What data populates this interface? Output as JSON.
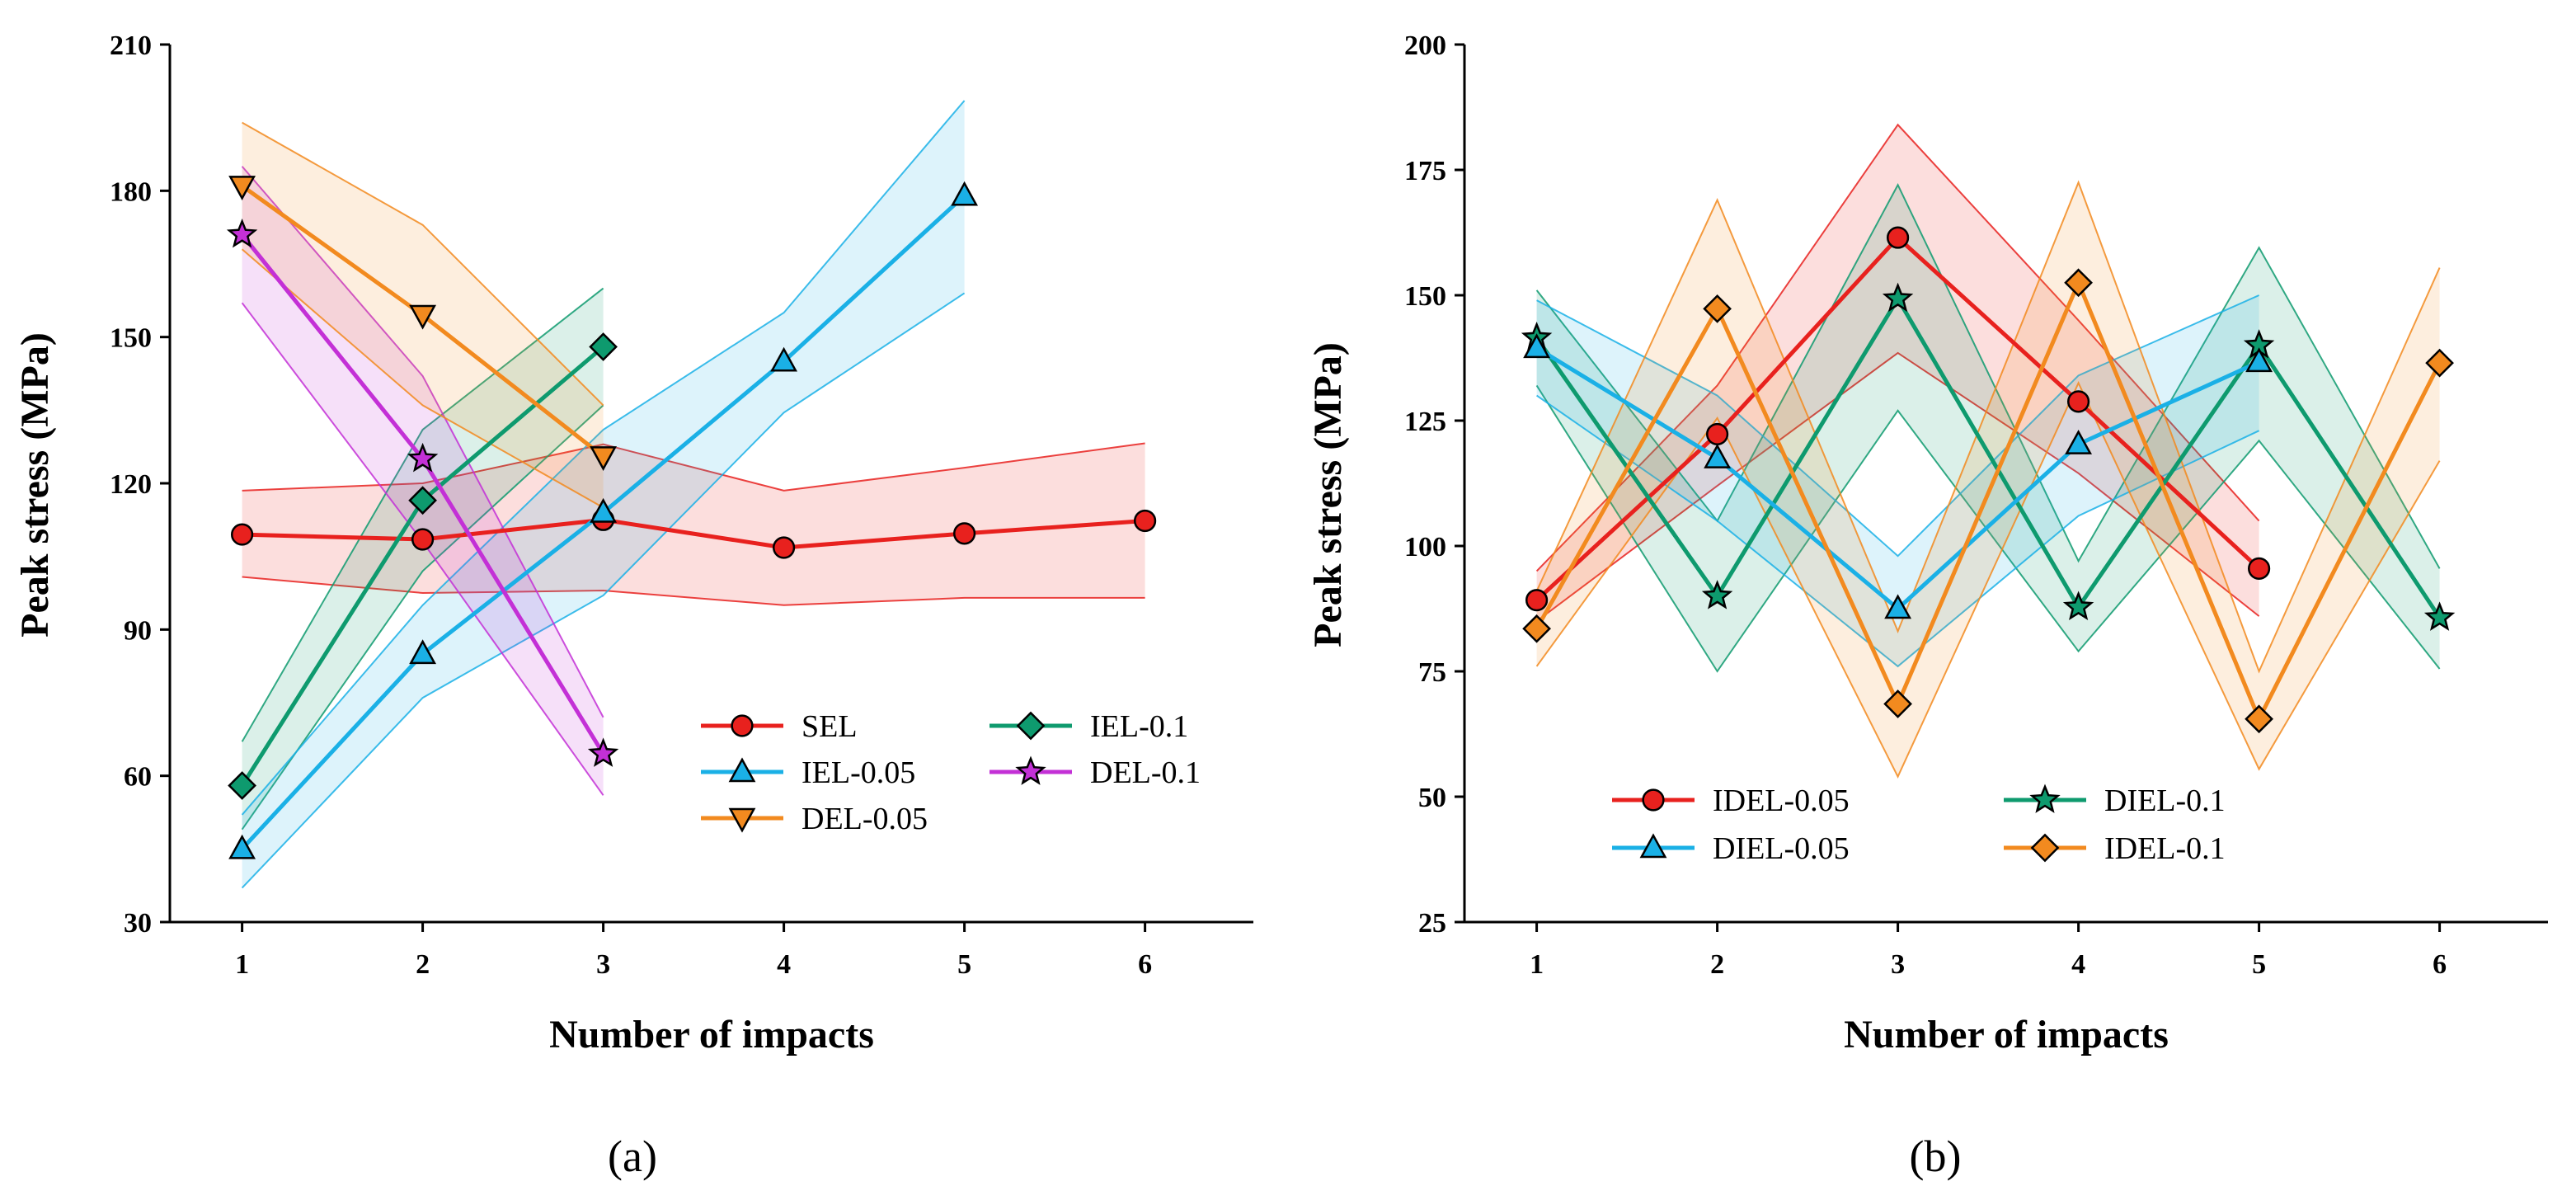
{
  "chart_data": [
    {
      "type": "line",
      "panel_label": "(a)",
      "xlabel": "Number of  impacts",
      "ylabel": "Peak stress (MPa)",
      "xlim": [
        0.6,
        6.6
      ],
      "ylim": [
        30,
        210
      ],
      "xticks": [
        1,
        2,
        3,
        4,
        5,
        6
      ],
      "yticks": [
        30,
        60,
        90,
        120,
        150,
        180,
        210
      ],
      "legend_position": "bottom-right",
      "series": [
        {
          "name": "SEL",
          "color": "#e8211e",
          "marker": "circle",
          "x": [
            1,
            2,
            3,
            4,
            5,
            6
          ],
          "values": [
            109.5,
            108.5,
            112.5,
            106.8,
            109.7,
            112.3
          ],
          "upper": [
            118.5,
            120,
            128,
            118.5,
            123.2,
            128.2
          ],
          "lower": [
            100.8,
            97.5,
            98,
            95,
            96.5,
            96.5
          ]
        },
        {
          "name": "IEL-0.1",
          "color": "#0e9a6e",
          "marker": "diamond",
          "x": [
            1,
            2,
            3
          ],
          "values": [
            58,
            116.5,
            148
          ],
          "upper": [
            67,
            131,
            160
          ],
          "lower": [
            49,
            102,
            136
          ]
        },
        {
          "name": "IEL-0.05",
          "color": "#1ab0e6",
          "marker": "triangle-up",
          "x": [
            1,
            2,
            3,
            4,
            5
          ],
          "values": [
            45,
            85,
            114,
            145,
            179
          ],
          "upper": [
            52,
            95,
            131,
            155,
            198.5
          ],
          "lower": [
            37,
            76,
            97,
            134.5,
            159
          ]
        },
        {
          "name": "DEL-0.1",
          "color": "#c330d6",
          "marker": "star",
          "x": [
            1,
            2,
            3
          ],
          "values": [
            171,
            125,
            64.5
          ],
          "upper": [
            185,
            142,
            72
          ],
          "lower": [
            157,
            108,
            56
          ]
        },
        {
          "name": "DEL-0.05",
          "color": "#f28a1f",
          "marker": "triangle-down",
          "x": [
            1,
            2,
            3
          ],
          "values": [
            181,
            154.5,
            125.5
          ],
          "upper": [
            194,
            173,
            136
          ],
          "lower": [
            168,
            136,
            115
          ]
        }
      ]
    },
    {
      "type": "line",
      "panel_label": "(b)",
      "xlabel": "Number of  impacts",
      "ylabel": "Peak stress (MPa)",
      "xlim": [
        0.6,
        6.6
      ],
      "ylim": [
        25,
        200
      ],
      "xticks": [
        1,
        2,
        3,
        4,
        5,
        6
      ],
      "yticks": [
        25,
        50,
        75,
        100,
        125,
        150,
        175,
        200
      ],
      "legend_position": "bottom-left",
      "series": [
        {
          "name": "IDEL-0.05",
          "color": "#e8211e",
          "marker": "circle",
          "x": [
            1,
            2,
            3,
            4,
            5
          ],
          "values": [
            89.2,
            122.3,
            161.5,
            128.8,
            95.5
          ],
          "upper": [
            95,
            132,
            184,
            145,
            105
          ],
          "lower": [
            85,
            112,
            138.5,
            114.5,
            86
          ]
        },
        {
          "name": "DIEL-0.1",
          "color": "#0e9a6e",
          "marker": "star",
          "x": [
            1,
            2,
            3,
            4,
            5,
            6
          ],
          "values": [
            141.5,
            90,
            149.3,
            87.8,
            140,
            85.7
          ],
          "upper": [
            151,
            105,
            172,
            97,
            159.5,
            95.5
          ],
          "lower": [
            132,
            75,
            127,
            79,
            121,
            75.5
          ]
        },
        {
          "name": "DIEL-0.05",
          "color": "#1ab0e6",
          "marker": "triangle-up",
          "x": [
            1,
            2,
            3,
            4,
            5
          ],
          "values": [
            139.5,
            117.5,
            87.5,
            120.3,
            136.7
          ],
          "upper": [
            149,
            130,
            98,
            134,
            150
          ],
          "lower": [
            130,
            105,
            76,
            106,
            123
          ]
        },
        {
          "name": "IDEL-0.1",
          "color": "#f28a1f",
          "marker": "diamond",
          "x": [
            1,
            2,
            3,
            4,
            5,
            6
          ],
          "values": [
            83.5,
            147.3,
            68.5,
            152.5,
            65.5,
            136.5
          ],
          "upper": [
            91,
            169,
            83,
            172.5,
            75,
            155.5
          ],
          "lower": [
            76,
            125.5,
            54,
            132.5,
            55.5,
            117
          ]
        }
      ]
    }
  ]
}
